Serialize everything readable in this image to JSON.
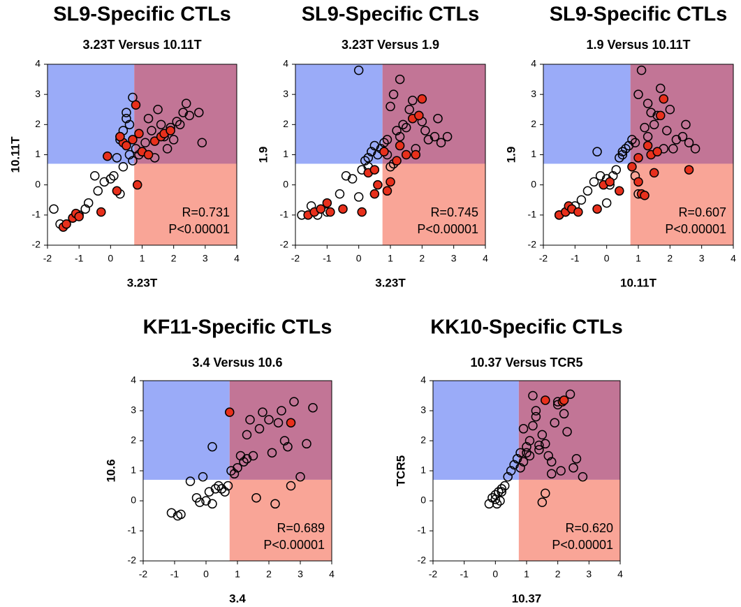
{
  "chart_data": [
    {
      "type": "scatter",
      "title": "SL9-Specific CTLs",
      "subtitle": "3.23T Versus 10.11T",
      "xlabel": "3.23T",
      "ylabel": "10.11T",
      "xlim": [
        -2,
        4
      ],
      "ylim": [
        -2,
        4
      ],
      "xticks": [
        -2,
        -1,
        0,
        1,
        2,
        3,
        4
      ],
      "yticks": [
        -2,
        -1,
        0,
        1,
        2,
        3,
        4
      ],
      "quadrant": {
        "x": 0.75,
        "y": 0.7,
        "colors": {
          "upper_left": "#9aabf8",
          "upper_right": "#c27596",
          "lower_right": "#f9a597"
        }
      },
      "annotations": [
        "R=0.731",
        "P<0.00001"
      ],
      "series": [
        {
          "color": "none",
          "edgecolor": "#000000",
          "x": [
            -1.8,
            -1.6,
            -1.2,
            -1.0,
            -0.8,
            -0.7,
            -0.5,
            -0.4,
            -0.2,
            0,
            0.1,
            0.2,
            0.3,
            0.4,
            0.5,
            0.5,
            0.6,
            0.6,
            0.7,
            0.7,
            0.8,
            0.9,
            1.0,
            1.1,
            1.2,
            1.3,
            1.5,
            1.6,
            1.8,
            2.0,
            2.2,
            2.3,
            2.4,
            2.5,
            2.8,
            2.9,
            1.4,
            1.7,
            1.9,
            2.1,
            0.3,
            0.4
          ],
          "y": [
            -0.8,
            -1.3,
            -1.1,
            -1.0,
            -0.8,
            -0.6,
            0.3,
            -0.2,
            0.1,
            0.2,
            0.3,
            0.9,
            1.5,
            1.8,
            2.2,
            2.4,
            1.0,
            2.0,
            2.9,
            0.8,
            1.2,
            1.0,
            1.1,
            1.4,
            2.2,
            1.8,
            2.5,
            2.0,
            1.2,
            1.5,
            2.0,
            2.4,
            2.7,
            2.3,
            2.4,
            1.4,
            0.9,
            1.6,
            1.9,
            2.1,
            -0.3,
            0.6
          ]
        },
        {
          "color": "#e8301c",
          "edgecolor": "#000000",
          "x": [
            -1.5,
            -1.4,
            -1.2,
            -1.1,
            -1.0,
            -0.3,
            -0.1,
            0.3,
            0.4,
            0.5,
            0.7,
            0.8,
            0.85,
            1.0,
            1.2,
            1.4,
            1.6,
            1.7,
            1.9,
            0.9,
            0.3,
            0.2
          ],
          "y": [
            -1.4,
            -1.3,
            -1.1,
            -0.95,
            -1.05,
            -0.9,
            0.95,
            1.6,
            1.4,
            1.3,
            1.5,
            2.65,
            0.0,
            1.1,
            1.0,
            1.45,
            1.6,
            1.7,
            1.8,
            1.7,
            1.6,
            -0.2
          ]
        }
      ]
    },
    {
      "type": "scatter",
      "title": "SL9-Specific CTLs",
      "subtitle": "3.23T Versus 1.9",
      "xlabel": "3.23T",
      "ylabel": "1.9",
      "xlim": [
        -2,
        4
      ],
      "ylim": [
        -2,
        4
      ],
      "xticks": [
        -2,
        -1,
        0,
        1,
        2,
        3,
        4
      ],
      "yticks": [
        -2,
        -1,
        0,
        1,
        2,
        3,
        4
      ],
      "quadrant": {
        "x": 0.75,
        "y": 0.7,
        "colors": {
          "upper_left": "#9aabf8",
          "upper_right": "#c27596",
          "lower_right": "#f9a597"
        }
      },
      "annotations": [
        "R=0.745",
        "P<0.00001"
      ],
      "series": [
        {
          "color": "none",
          "edgecolor": "#000000",
          "x": [
            -1.8,
            -1.5,
            -1.3,
            -1.0,
            -0.6,
            -0.4,
            -0.2,
            0,
            0.1,
            0.2,
            0.3,
            0.4,
            0.5,
            0.6,
            0.7,
            0.8,
            0.9,
            1.0,
            1.1,
            1.2,
            1.3,
            1.4,
            1.5,
            1.6,
            1.8,
            2.0,
            2.2,
            2.5,
            2.8,
            0.0,
            0.9,
            1.1,
            1.7,
            1.9,
            2.4,
            2.6,
            0.3,
            1.3,
            2.1,
            1.0
          ],
          "y": [
            -1.0,
            -0.7,
            -1.0,
            -0.9,
            -0.3,
            0.3,
            0.2,
            -0.4,
            0.5,
            0.8,
            0.9,
            1.1,
            1.3,
            1.0,
            1.2,
            1.4,
            1.5,
            2.6,
            3.0,
            1.8,
            1.6,
            2.0,
            1.9,
            2.5,
            1.2,
            2.1,
            1.5,
            2.2,
            1.6,
            3.8,
            1.0,
            0.7,
            2.8,
            2.3,
            1.6,
            1.4,
            0.6,
            3.5,
            1.8,
            0.6
          ]
        },
        {
          "color": "#e8301c",
          "edgecolor": "#000000",
          "x": [
            -1.6,
            -1.4,
            -1.2,
            -1.0,
            -0.9,
            -0.5,
            0.1,
            0.3,
            0.5,
            0.6,
            0.8,
            0.9,
            1.0,
            1.2,
            1.3,
            1.5,
            1.7,
            1.9,
            2.0,
            1.8,
            0.5
          ],
          "y": [
            -1.0,
            -0.9,
            -0.8,
            -0.6,
            -0.9,
            -0.8,
            -0.9,
            0.4,
            0.5,
            0.0,
            1.1,
            -0.2,
            0.1,
            0.8,
            1.3,
            1.0,
            2.2,
            2.3,
            2.85,
            1.0,
            -0.3
          ]
        }
      ]
    },
    {
      "type": "scatter",
      "title": "SL9-Specific CTLs",
      "subtitle": "1.9 Versus 10.11T",
      "xlabel": "10.11T",
      "ylabel": "1.9",
      "xlim": [
        -2,
        4
      ],
      "ylim": [
        -2,
        4
      ],
      "xticks": [
        -2,
        -1,
        0,
        1,
        2,
        3,
        4
      ],
      "yticks": [
        -2,
        -1,
        0,
        1,
        2,
        3,
        4
      ],
      "quadrant": {
        "x": 0.75,
        "y": 0.7,
        "colors": {
          "upper_left": "#9aabf8",
          "upper_right": "#c27596",
          "lower_right": "#f9a597"
        }
      },
      "annotations": [
        "R=0.607",
        "P<0.00001"
      ],
      "series": [
        {
          "color": "none",
          "edgecolor": "#000000",
          "x": [
            -1.5,
            -1.3,
            -1.0,
            -0.8,
            -0.6,
            -0.4,
            -0.2,
            0,
            0.1,
            0.2,
            0.3,
            0.4,
            0.5,
            0.6,
            0.7,
            0.8,
            0.9,
            1.0,
            1.1,
            1.2,
            1.3,
            1.4,
            1.5,
            1.6,
            1.8,
            2.0,
            2.2,
            2.5,
            2.8,
            -0.3,
            0.9,
            1.0,
            1.7,
            1.9,
            2.4,
            2.6,
            0.5,
            1.3,
            2.1,
            0.0
          ],
          "y": [
            -1.0,
            -0.9,
            -0.7,
            -0.5,
            -0.2,
            0.1,
            0.3,
            -0.6,
            0.0,
            0.3,
            0.5,
            0.9,
            1.0,
            1.2,
            1.3,
            1.5,
            1.4,
            3.0,
            3.8,
            1.9,
            1.6,
            2.4,
            2.0,
            2.3,
            1.2,
            2.5,
            1.5,
            2.0,
            1.2,
            1.1,
            0.3,
            -0.3,
            3.2,
            1.8,
            1.6,
            1.4,
            1.1,
            2.7,
            1.2,
            0.2
          ]
        },
        {
          "color": "#e8301c",
          "edgecolor": "#000000",
          "x": [
            -1.5,
            -1.3,
            -1.2,
            -1.1,
            -0.9,
            -0.3,
            -0.1,
            0.1,
            0.4,
            0.8,
            1.0,
            1.1,
            1.2,
            1.3,
            1.4,
            1.5,
            1.6,
            1.7,
            1.8,
            2.6,
            1.0
          ],
          "y": [
            -1.0,
            -0.9,
            -0.7,
            -0.8,
            -0.9,
            -0.8,
            0.0,
            0.1,
            -0.2,
            0.6,
            0.1,
            -0.3,
            -0.35,
            1.3,
            1.0,
            0.4,
            1.1,
            2.3,
            2.85,
            0.5,
            0.9
          ]
        }
      ]
    },
    {
      "type": "scatter",
      "title": "KF11-Specific CTLs",
      "subtitle": "3.4 Versus 10.6",
      "xlabel": "3.4",
      "ylabel": "10.6",
      "xlim": [
        -2,
        4
      ],
      "ylim": [
        -2,
        4
      ],
      "xticks": [
        -2,
        -1,
        0,
        1,
        2,
        3,
        4
      ],
      "yticks": [
        -2,
        -1,
        0,
        1,
        2,
        3,
        4
      ],
      "quadrant": {
        "x": 0.75,
        "y": 0.7,
        "colors": {
          "upper_left": "#9aabf8",
          "upper_right": "#c27596",
          "lower_right": "#f9a597"
        }
      },
      "annotations": [
        "R=0.689",
        "P<0.00001"
      ],
      "series": [
        {
          "color": "none",
          "edgecolor": "#000000",
          "x": [
            -1.1,
            -0.9,
            -0.8,
            -0.5,
            -0.3,
            -0.2,
            -0.1,
            0,
            0.1,
            0.2,
            0.3,
            0.4,
            0.5,
            0.6,
            0.7,
            0.8,
            0.9,
            1.0,
            1.1,
            1.2,
            1.3,
            1.4,
            1.5,
            1.6,
            1.7,
            1.8,
            2.0,
            2.1,
            2.3,
            2.4,
            2.5,
            2.6,
            2.7,
            2.8,
            3.0,
            3.2,
            3.4,
            2.2,
            1.3,
            0.2
          ],
          "y": [
            -0.4,
            -0.5,
            -0.45,
            0.65,
            0.1,
            -0.05,
            0.8,
            0.0,
            0.3,
            1.8,
            0.4,
            0.5,
            0.4,
            0.3,
            0.5,
            1.0,
            0.9,
            1.1,
            1.5,
            1.3,
            1.4,
            2.7,
            1.5,
            0.1,
            2.4,
            2.95,
            2.7,
            1.6,
            2.6,
            3.0,
            2.0,
            1.8,
            0.5,
            3.3,
            0.8,
            1.9,
            3.1,
            -0.1,
            2.2,
            -0.1
          ]
        },
        {
          "color": "#e8301c",
          "edgecolor": "#000000",
          "x": [
            0.75,
            2.7
          ],
          "y": [
            2.95,
            2.6
          ]
        }
      ]
    },
    {
      "type": "scatter",
      "title": "KK10-Specific CTLs",
      "subtitle": "10.37 Versus TCR5",
      "xlabel": "10.37",
      "ylabel": "TCR5",
      "xlim": [
        -2,
        4
      ],
      "ylim": [
        -2,
        4
      ],
      "xticks": [
        -2,
        -1,
        0,
        1,
        2,
        3,
        4
      ],
      "yticks": [
        -2,
        -1,
        0,
        1,
        2,
        3,
        4
      ],
      "quadrant": {
        "x": 0.75,
        "y": 0.7,
        "colors": {
          "upper_left": "#9aabf8",
          "upper_right": "#c27596",
          "lower_right": "#f9a597"
        }
      },
      "annotations": [
        "R=0.620",
        "P<0.00001"
      ],
      "series": [
        {
          "color": "none",
          "edgecolor": "#000000",
          "x": [
            -0.2,
            -0.1,
            0,
            0.05,
            0.1,
            0.15,
            0.2,
            0.3,
            0.4,
            0.5,
            0.6,
            0.7,
            0.8,
            0.9,
            1.0,
            1.1,
            1.2,
            1.3,
            1.4,
            1.5,
            1.6,
            1.7,
            1.8,
            1.9,
            2.0,
            2.1,
            2.2,
            2.3,
            2.5,
            2.6,
            2.8,
            0.9,
            1.0,
            1.2,
            1.4,
            1.6,
            2.0,
            2.4,
            1.3,
            0.0,
            0.2,
            1.5,
            1.8,
            0.8,
            1.1
          ],
          "y": [
            -0.1,
            0.1,
            0.2,
            -0.1,
            0.3,
            0.0,
            0.4,
            0.5,
            0.8,
            1.0,
            1.2,
            1.4,
            1.6,
            1.3,
            1.8,
            2.0,
            2.5,
            3.0,
            1.7,
            2.2,
            1.9,
            1.5,
            1.3,
            2.6,
            3.3,
            1.0,
            2.9,
            2.3,
            1.1,
            1.4,
            0.8,
            2.4,
            1.6,
            3.5,
            1.85,
            0.25,
            3.2,
            3.55,
            2.8,
            0.05,
            0.3,
            -0.05,
            0.9,
            1.1,
            1.5
          ]
        },
        {
          "color": "#e8301c",
          "edgecolor": "#000000",
          "x": [
            1.6,
            2.15,
            2.2
          ],
          "y": [
            3.35,
            3.3,
            3.35
          ]
        }
      ]
    }
  ]
}
